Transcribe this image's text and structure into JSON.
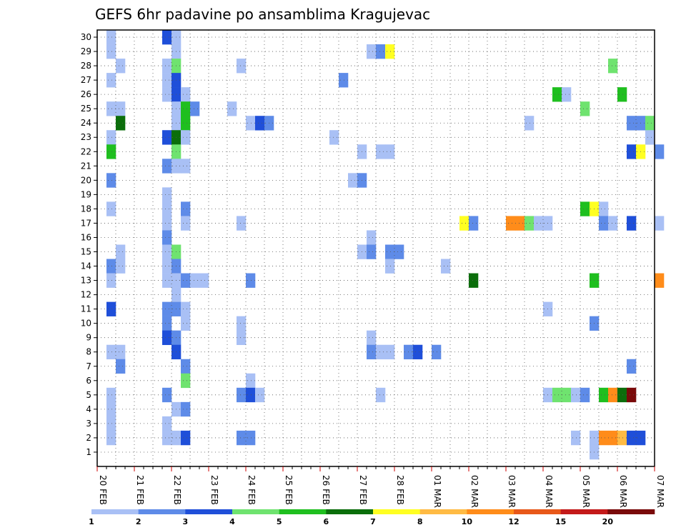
{
  "chart_data": {
    "type": "heatmap",
    "title": "GEFS 6hr padavine po ansamblima Kragujevac",
    "xlabel": "",
    "ylabel": "",
    "x_ticks": [
      "20 FEB",
      "21 FEB",
      "22 FEB",
      "23 FEB",
      "24 FEB",
      "25 FEB",
      "26 FEB",
      "27 FEB",
      "28 FEB",
      "01 MAR",
      "02 MAR",
      "03 MAR",
      "04 MAR",
      "05 MAR",
      "06 MAR",
      "07 MAR"
    ],
    "y_ticks": [
      "1",
      "2",
      "3",
      "4",
      "5",
      "6",
      "7",
      "8",
      "9",
      "10",
      "11",
      "12",
      "13",
      "14",
      "15",
      "16",
      "17",
      "18",
      "19",
      "20",
      "21",
      "22",
      "23",
      "24",
      "25",
      "26",
      "27",
      "28",
      "29",
      "30"
    ],
    "xlim_steps": [
      0,
      60
    ],
    "steps_per_day": 4,
    "ylim": [
      0.5,
      30.5
    ],
    "grid": true,
    "colorbar": {
      "labels": [
        "1",
        "2",
        "3",
        "4",
        "5",
        "6",
        "7",
        "8",
        "10",
        "12",
        "15",
        "20"
      ],
      "colors": [
        "#a9c0f5",
        "#5e8be8",
        "#1f4fd9",
        "#6fe36f",
        "#1fbf1f",
        "#0b6e0b",
        "#ffff22",
        "#ffbb44",
        "#ff8c1a",
        "#e8581a",
        "#c41a1a",
        "#7a0a0a"
      ]
    },
    "cells": [
      {
        "m": 30,
        "s": 1,
        "l": 0
      },
      {
        "m": 30,
        "s": 7,
        "l": 2
      },
      {
        "m": 30,
        "s": 8,
        "l": 0
      },
      {
        "m": 29,
        "s": 1,
        "l": 0
      },
      {
        "m": 29,
        "s": 8,
        "l": 0
      },
      {
        "m": 29,
        "s": 29,
        "l": 0
      },
      {
        "m": 29,
        "s": 30,
        "l": 1
      },
      {
        "m": 29,
        "s": 31,
        "l": 6
      },
      {
        "m": 28,
        "s": 2,
        "l": 0
      },
      {
        "m": 28,
        "s": 7,
        "l": 0
      },
      {
        "m": 28,
        "s": 8,
        "l": 3
      },
      {
        "m": 28,
        "s": 15,
        "l": 0
      },
      {
        "m": 28,
        "s": 55,
        "l": 3
      },
      {
        "m": 27,
        "s": 1,
        "l": 0
      },
      {
        "m": 27,
        "s": 7,
        "l": 0
      },
      {
        "m": 27,
        "s": 8,
        "l": 2
      },
      {
        "m": 27,
        "s": 26,
        "l": 1
      },
      {
        "m": 26,
        "s": 7,
        "l": 0
      },
      {
        "m": 26,
        "s": 8,
        "l": 2
      },
      {
        "m": 26,
        "s": 9,
        "l": 0
      },
      {
        "m": 26,
        "s": 49,
        "l": 4
      },
      {
        "m": 26,
        "s": 50,
        "l": 0
      },
      {
        "m": 26,
        "s": 56,
        "l": 4
      },
      {
        "m": 25,
        "s": 1,
        "l": 0
      },
      {
        "m": 25,
        "s": 2,
        "l": 0
      },
      {
        "m": 25,
        "s": 8,
        "l": 0
      },
      {
        "m": 25,
        "s": 9,
        "l": 4
      },
      {
        "m": 25,
        "s": 10,
        "l": 1
      },
      {
        "m": 25,
        "s": 14,
        "l": 0
      },
      {
        "m": 25,
        "s": 52,
        "l": 3
      },
      {
        "m": 24,
        "s": 2,
        "l": 5
      },
      {
        "m": 24,
        "s": 8,
        "l": 0
      },
      {
        "m": 24,
        "s": 9,
        "l": 4
      },
      {
        "m": 24,
        "s": 16,
        "l": 0
      },
      {
        "m": 24,
        "s": 17,
        "l": 2
      },
      {
        "m": 24,
        "s": 18,
        "l": 1
      },
      {
        "m": 24,
        "s": 46,
        "l": 0
      },
      {
        "m": 24,
        "s": 57,
        "l": 1
      },
      {
        "m": 24,
        "s": 58,
        "l": 1
      },
      {
        "m": 24,
        "s": 59,
        "l": 3
      },
      {
        "m": 23,
        "s": 1,
        "l": 0
      },
      {
        "m": 23,
        "s": 7,
        "l": 2
      },
      {
        "m": 23,
        "s": 8,
        "l": 5
      },
      {
        "m": 23,
        "s": 9,
        "l": 0
      },
      {
        "m": 23,
        "s": 25,
        "l": 0
      },
      {
        "m": 23,
        "s": 59,
        "l": 0
      },
      {
        "m": 22,
        "s": 1,
        "l": 4
      },
      {
        "m": 22,
        "s": 8,
        "l": 3
      },
      {
        "m": 22,
        "s": 28,
        "l": 0
      },
      {
        "m": 22,
        "s": 30,
        "l": 0
      },
      {
        "m": 22,
        "s": 31,
        "l": 0
      },
      {
        "m": 22,
        "s": 57,
        "l": 2
      },
      {
        "m": 22,
        "s": 58,
        "l": 6
      },
      {
        "m": 22,
        "s": 60,
        "l": 1
      },
      {
        "m": 21,
        "s": 7,
        "l": 1
      },
      {
        "m": 21,
        "s": 8,
        "l": 0
      },
      {
        "m": 21,
        "s": 9,
        "l": 0
      },
      {
        "m": 20,
        "s": 1,
        "l": 1
      },
      {
        "m": 20,
        "s": 27,
        "l": 0
      },
      {
        "m": 20,
        "s": 28,
        "l": 1
      },
      {
        "m": 19,
        "s": 7,
        "l": 0
      },
      {
        "m": 18,
        "s": 1,
        "l": 0
      },
      {
        "m": 18,
        "s": 7,
        "l": 0
      },
      {
        "m": 18,
        "s": 9,
        "l": 1
      },
      {
        "m": 18,
        "s": 52,
        "l": 4
      },
      {
        "m": 18,
        "s": 53,
        "l": 6
      },
      {
        "m": 18,
        "s": 54,
        "l": 0
      },
      {
        "m": 17,
        "s": 7,
        "l": 0
      },
      {
        "m": 17,
        "s": 9,
        "l": 0
      },
      {
        "m": 17,
        "s": 15,
        "l": 0
      },
      {
        "m": 17,
        "s": 39,
        "l": 6
      },
      {
        "m": 17,
        "s": 40,
        "l": 1
      },
      {
        "m": 17,
        "s": 44,
        "l": 8
      },
      {
        "m": 17,
        "s": 45,
        "l": 8
      },
      {
        "m": 17,
        "s": 46,
        "l": 3
      },
      {
        "m": 17,
        "s": 47,
        "l": 0
      },
      {
        "m": 17,
        "s": 48,
        "l": 0
      },
      {
        "m": 17,
        "s": 54,
        "l": 1
      },
      {
        "m": 17,
        "s": 55,
        "l": 0
      },
      {
        "m": 17,
        "s": 57,
        "l": 2
      },
      {
        "m": 17,
        "s": 60,
        "l": 0
      },
      {
        "m": 16,
        "s": 7,
        "l": 1
      },
      {
        "m": 16,
        "s": 29,
        "l": 0
      },
      {
        "m": 15,
        "s": 2,
        "l": 0
      },
      {
        "m": 15,
        "s": 7,
        "l": 0
      },
      {
        "m": 15,
        "s": 8,
        "l": 3
      },
      {
        "m": 15,
        "s": 28,
        "l": 0
      },
      {
        "m": 15,
        "s": 29,
        "l": 1
      },
      {
        "m": 15,
        "s": 31,
        "l": 1
      },
      {
        "m": 15,
        "s": 32,
        "l": 1
      },
      {
        "m": 14,
        "s": 1,
        "l": 1
      },
      {
        "m": 14,
        "s": 2,
        "l": 0
      },
      {
        "m": 14,
        "s": 7,
        "l": 0
      },
      {
        "m": 14,
        "s": 8,
        "l": 1
      },
      {
        "m": 14,
        "s": 31,
        "l": 0
      },
      {
        "m": 14,
        "s": 37,
        "l": 0
      },
      {
        "m": 13,
        "s": 1,
        "l": 0
      },
      {
        "m": 13,
        "s": 7,
        "l": 0
      },
      {
        "m": 13,
        "s": 8,
        "l": 0
      },
      {
        "m": 13,
        "s": 9,
        "l": 1
      },
      {
        "m": 13,
        "s": 10,
        "l": 0
      },
      {
        "m": 13,
        "s": 11,
        "l": 0
      },
      {
        "m": 13,
        "s": 16,
        "l": 1
      },
      {
        "m": 13,
        "s": 40,
        "l": 5
      },
      {
        "m": 13,
        "s": 53,
        "l": 4
      },
      {
        "m": 13,
        "s": 60,
        "l": 8
      },
      {
        "m": 12,
        "s": 8,
        "l": 0
      },
      {
        "m": 11,
        "s": 1,
        "l": 2
      },
      {
        "m": 11,
        "s": 7,
        "l": 1
      },
      {
        "m": 11,
        "s": 8,
        "l": 1
      },
      {
        "m": 11,
        "s": 9,
        "l": 0
      },
      {
        "m": 11,
        "s": 48,
        "l": 0
      },
      {
        "m": 10,
        "s": 7,
        "l": 1
      },
      {
        "m": 10,
        "s": 9,
        "l": 0
      },
      {
        "m": 10,
        "s": 15,
        "l": 0
      },
      {
        "m": 10,
        "s": 53,
        "l": 1
      },
      {
        "m": 9,
        "s": 7,
        "l": 2
      },
      {
        "m": 9,
        "s": 8,
        "l": 1
      },
      {
        "m": 9,
        "s": 15,
        "l": 0
      },
      {
        "m": 9,
        "s": 29,
        "l": 0
      },
      {
        "m": 8,
        "s": 1,
        "l": 0
      },
      {
        "m": 8,
        "s": 2,
        "l": 0
      },
      {
        "m": 8,
        "s": 8,
        "l": 2
      },
      {
        "m": 8,
        "s": 29,
        "l": 1
      },
      {
        "m": 8,
        "s": 30,
        "l": 0
      },
      {
        "m": 8,
        "s": 31,
        "l": 0
      },
      {
        "m": 8,
        "s": 33,
        "l": 1
      },
      {
        "m": 8,
        "s": 34,
        "l": 2
      },
      {
        "m": 8,
        "s": 36,
        "l": 1
      },
      {
        "m": 7,
        "s": 2,
        "l": 1
      },
      {
        "m": 7,
        "s": 9,
        "l": 1
      },
      {
        "m": 7,
        "s": 57,
        "l": 1
      },
      {
        "m": 6,
        "s": 9,
        "l": 3
      },
      {
        "m": 6,
        "s": 16,
        "l": 0
      },
      {
        "m": 5,
        "s": 1,
        "l": 0
      },
      {
        "m": 5,
        "s": 7,
        "l": 1
      },
      {
        "m": 5,
        "s": 15,
        "l": 1
      },
      {
        "m": 5,
        "s": 16,
        "l": 2
      },
      {
        "m": 5,
        "s": 17,
        "l": 0
      },
      {
        "m": 5,
        "s": 30,
        "l": 0
      },
      {
        "m": 5,
        "s": 48,
        "l": 0
      },
      {
        "m": 5,
        "s": 49,
        "l": 3
      },
      {
        "m": 5,
        "s": 50,
        "l": 3
      },
      {
        "m": 5,
        "s": 51,
        "l": 0
      },
      {
        "m": 5,
        "s": 52,
        "l": 1
      },
      {
        "m": 5,
        "s": 54,
        "l": 4
      },
      {
        "m": 5,
        "s": 55,
        "l": 8
      },
      {
        "m": 5,
        "s": 56,
        "l": 5
      },
      {
        "m": 5,
        "s": 57,
        "l": 11
      },
      {
        "m": 4,
        "s": 1,
        "l": 0
      },
      {
        "m": 4,
        "s": 8,
        "l": 0
      },
      {
        "m": 4,
        "s": 9,
        "l": 1
      },
      {
        "m": 3,
        "s": 1,
        "l": 0
      },
      {
        "m": 3,
        "s": 7,
        "l": 0
      },
      {
        "m": 2,
        "s": 1,
        "l": 0
      },
      {
        "m": 2,
        "s": 7,
        "l": 0
      },
      {
        "m": 2,
        "s": 8,
        "l": 0
      },
      {
        "m": 2,
        "s": 9,
        "l": 2
      },
      {
        "m": 2,
        "s": 15,
        "l": 1
      },
      {
        "m": 2,
        "s": 16,
        "l": 1
      },
      {
        "m": 2,
        "s": 51,
        "l": 0
      },
      {
        "m": 2,
        "s": 53,
        "l": 0
      },
      {
        "m": 2,
        "s": 54,
        "l": 8
      },
      {
        "m": 2,
        "s": 55,
        "l": 8
      },
      {
        "m": 2,
        "s": 56,
        "l": 7
      },
      {
        "m": 2,
        "s": 57,
        "l": 2
      },
      {
        "m": 2,
        "s": 58,
        "l": 2
      },
      {
        "m": 1,
        "s": 53,
        "l": 0
      }
    ]
  }
}
